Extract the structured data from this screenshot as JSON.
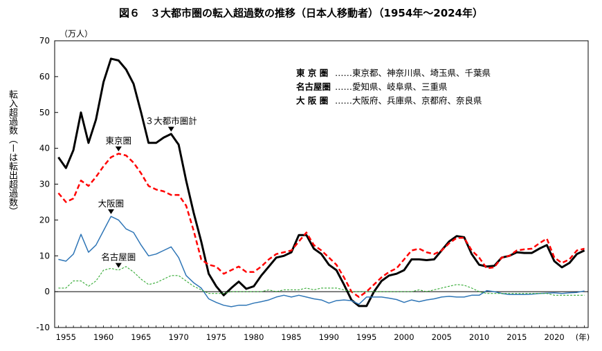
{
  "chart_data": {
    "type": "line",
    "title": "図６　３大都市圏の転入超過数の推移（日本人移動者）（1954年～2024年）",
    "ylabel": "転入超過数（ーは転出超過数）",
    "y_unit": "（万人）",
    "x_unit": "(年)",
    "xlim": [
      1954,
      2024
    ],
    "ylim": [
      -10,
      70
    ],
    "y_ticks": [
      "-10",
      "0",
      "10",
      "20",
      "30",
      "40",
      "50",
      "60",
      "70"
    ],
    "x_ticks": [
      "1955",
      "1960",
      "1965",
      "1970",
      "1975",
      "1980",
      "1985",
      "1990",
      "1995",
      "2000",
      "2005",
      "2010",
      "2015",
      "2020"
    ],
    "grid": false,
    "legend_placement": "top-right",
    "years": [
      1954,
      1955,
      1956,
      1957,
      1958,
      1959,
      1960,
      1961,
      1962,
      1963,
      1964,
      1965,
      1966,
      1967,
      1968,
      1969,
      1970,
      1971,
      1972,
      1973,
      1974,
      1975,
      1976,
      1977,
      1978,
      1979,
      1980,
      1981,
      1982,
      1983,
      1984,
      1985,
      1986,
      1987,
      1988,
      1989,
      1990,
      1991,
      1992,
      1993,
      1994,
      1995,
      1996,
      1997,
      1998,
      1999,
      2000,
      2001,
      2002,
      2003,
      2004,
      2005,
      2006,
      2007,
      2008,
      2009,
      2010,
      2011,
      2012,
      2013,
      2014,
      2015,
      2016,
      2017,
      2018,
      2019,
      2020,
      2021,
      2022,
      2023,
      2024
    ],
    "series": [
      {
        "name": "３大都市圏計",
        "color": "#000000",
        "style": "solid-thick",
        "values": [
          37.5,
          34.5,
          39.5,
          50,
          41.5,
          48,
          58.5,
          65,
          64.5,
          62,
          58,
          50,
          41.5,
          41.5,
          43,
          44,
          41,
          31,
          22,
          14,
          5,
          1.5,
          -1,
          1,
          2.8,
          0.8,
          1.5,
          4.5,
          7,
          9.5,
          10,
          11,
          15.8,
          15.8,
          12,
          10.5,
          7.5,
          6,
          2,
          -2.3,
          -4,
          -4,
          0,
          3,
          4.5,
          5,
          6,
          9,
          9,
          8.8,
          9,
          11.5,
          14,
          15.5,
          15.2,
          10.5,
          7.5,
          7,
          7.2,
          9.5,
          10,
          11,
          10.8,
          10.8,
          12,
          13,
          8.5,
          6.8,
          8,
          10.5,
          11.5
        ]
      },
      {
        "name": "東京圏",
        "color": "#ff0000",
        "style": "dashed",
        "values": [
          27.5,
          25,
          26,
          31,
          29.5,
          32,
          35,
          37.5,
          38.5,
          38,
          36,
          33,
          29.5,
          28.5,
          28,
          27,
          27,
          24,
          17,
          9,
          7.5,
          7,
          5,
          6,
          7,
          5.5,
          5.5,
          7,
          9,
          10.5,
          11,
          11.5,
          14,
          16.5,
          13,
          11.5,
          9.5,
          7.5,
          4,
          0,
          -1.5,
          0,
          2,
          4,
          5.5,
          6.5,
          9,
          11.5,
          12,
          11,
          10.5,
          11.5,
          13.5,
          15,
          15,
          11.5,
          9.5,
          6.5,
          6.8,
          9.5,
          10,
          11.5,
          11.8,
          12,
          13.5,
          14.8,
          9.5,
          8,
          9,
          11.5,
          12
        ]
      },
      {
        "name": "大阪圏",
        "color": "#2e75b6",
        "style": "solid",
        "values": [
          9,
          8.5,
          10.5,
          16,
          11,
          13,
          17,
          21,
          20,
          17.5,
          16.5,
          13,
          10,
          10.5,
          11.5,
          12.5,
          9.5,
          4.5,
          2.5,
          1,
          -2,
          -3,
          -3.8,
          -4.2,
          -3.8,
          -3.8,
          -3.2,
          -2.8,
          -2.3,
          -1.5,
          -1,
          -1.5,
          -1,
          -1.5,
          -2,
          -2.3,
          -3.2,
          -2.5,
          -2.3,
          -2.5,
          -3.5,
          -1.5,
          -1.5,
          -1.5,
          -1.8,
          -2.2,
          -3,
          -2.3,
          -2.8,
          -2.3,
          -2,
          -1.5,
          -1.3,
          -1.5,
          -1.5,
          -1,
          -1,
          0.3,
          0,
          -0.5,
          -0.8,
          -0.8,
          -0.8,
          -0.7,
          -0.5,
          -0.4,
          -0.3,
          -0.5,
          -0.3,
          -0.2,
          0.2
        ]
      },
      {
        "name": "名古屋圏",
        "color": "#33aa33",
        "style": "dashed-thin",
        "values": [
          1,
          1,
          3,
          3,
          1.5,
          3,
          6,
          6.5,
          6,
          7,
          5.5,
          3.5,
          2,
          2.5,
          3.5,
          4.5,
          4.5,
          3,
          1.5,
          0.5,
          -0.5,
          -0.5,
          -0.5,
          0,
          0,
          0,
          0,
          0,
          0.5,
          0,
          0.5,
          0.5,
          0.5,
          1,
          0.5,
          1,
          1,
          1,
          0.5,
          0,
          0,
          0,
          0,
          0,
          0,
          0,
          0,
          0,
          0.5,
          0,
          0.5,
          1,
          1.5,
          2,
          1.8,
          1,
          0,
          -0.5,
          -0.5,
          -0.5,
          -0.5,
          -0.5,
          -0.5,
          -0.5,
          -0.5,
          -0.5,
          -1,
          -1,
          -1,
          -1,
          -1
        ]
      }
    ],
    "annotations": [
      {
        "text": "３大都市圏計",
        "year": 1969,
        "value": 46
      },
      {
        "text": "東京圏",
        "year": 1962,
        "value": 40.5
      },
      {
        "text": "大阪圏",
        "year": 1961,
        "value": 23
      },
      {
        "text": "名古屋圏",
        "year": 1962,
        "value": 8
      }
    ]
  },
  "legend": [
    {
      "key": "東 京 圏",
      "members": "……東京都、神奈川県、埼玉県、千葉県"
    },
    {
      "key": "名古屋圏",
      "members": "……愛知県、岐阜県、三重県"
    },
    {
      "key": "大 阪 圏",
      "members": "……大阪府、兵庫県、京都府、奈良県"
    }
  ]
}
